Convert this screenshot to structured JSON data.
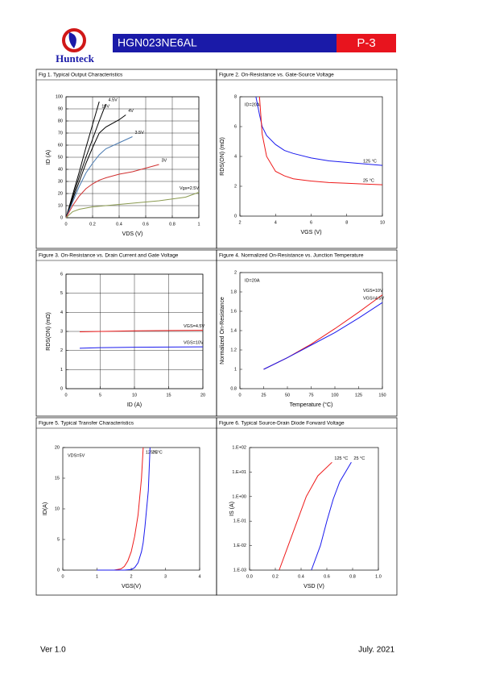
{
  "header": {
    "logo": "Hunteck",
    "title": "HGN023NE6AL",
    "page": "P-3"
  },
  "footer": {
    "version": "Ver 1.0",
    "date": "July. 2021"
  },
  "chart_data": [
    {
      "type": "line",
      "title": "Fig 1. Typical Output Characteristics",
      "xlabel": "VDS (V)",
      "ylabel": "ID (A)",
      "xlim": [
        0,
        1
      ],
      "xticks": [
        0,
        0.2,
        0.4,
        0.6,
        0.8,
        1
      ],
      "ylim": [
        0,
        100
      ],
      "yticks": [
        0,
        10,
        20,
        30,
        40,
        50,
        60,
        70,
        80,
        90,
        100
      ],
      "grid": true,
      "series": [
        {
          "name": "10V",
          "color": "#000000",
          "x": [
            0,
            0.05,
            0.1,
            0.15,
            0.2,
            0.25
          ],
          "values": [
            0,
            19,
            38,
            58,
            77,
            96
          ]
        },
        {
          "name": "4.5V",
          "color": "#000000",
          "x": [
            0,
            0.05,
            0.1,
            0.15,
            0.2,
            0.25,
            0.3
          ],
          "values": [
            0,
            17,
            34,
            50,
            65,
            80,
            94
          ]
        },
        {
          "name": "4V",
          "color": "#000000",
          "x": [
            0,
            0.05,
            0.1,
            0.15,
            0.2,
            0.25,
            0.3,
            0.4,
            0.45
          ],
          "values": [
            0,
            15,
            30,
            45,
            58,
            70,
            75,
            81,
            85
          ]
        },
        {
          "name": "3.5V",
          "color": "#4a7ab0",
          "x": [
            0,
            0.05,
            0.1,
            0.15,
            0.2,
            0.25,
            0.3,
            0.4,
            0.5
          ],
          "values": [
            0,
            13,
            26,
            37,
            45,
            52,
            57,
            62,
            67
          ]
        },
        {
          "name": "3V",
          "color": "#d03030",
          "x": [
            0,
            0.05,
            0.1,
            0.15,
            0.2,
            0.25,
            0.3,
            0.4,
            0.5,
            0.6,
            0.7
          ],
          "values": [
            0,
            10,
            18,
            24,
            28,
            31,
            33,
            36,
            38,
            41,
            44
          ]
        },
        {
          "name": "Vgs=2.5V",
          "color": "#8a9a50",
          "x": [
            0,
            0.05,
            0.1,
            0.2,
            0.3,
            0.4,
            0.5,
            0.6,
            0.7,
            0.8,
            0.9,
            1
          ],
          "values": [
            0,
            5,
            7,
            9,
            10,
            11,
            12,
            13,
            14,
            15.5,
            17,
            21
          ]
        }
      ]
    },
    {
      "type": "line",
      "title": "Figure 2. On-Resistance vs. Gate-Source Voltage",
      "xlabel": "VGS (V)",
      "ylabel": "RDS(ON) (mΩ)",
      "annotation": "ID=20A",
      "xlim": [
        2,
        10
      ],
      "xticks": [
        2,
        4,
        6,
        8,
        10
      ],
      "ylim": [
        0,
        8
      ],
      "yticks": [
        0,
        2,
        4,
        6,
        8
      ],
      "grid": false,
      "series": [
        {
          "name": "125 °C",
          "color": "#1a1aee",
          "x": [
            2.9,
            3.1,
            3.25,
            3.5,
            4,
            4.5,
            5,
            6,
            7,
            8,
            9,
            10
          ],
          "values": [
            8,
            6.8,
            6.0,
            5.4,
            4.8,
            4.4,
            4.2,
            3.9,
            3.7,
            3.6,
            3.5,
            3.4
          ]
        },
        {
          "name": "25 °C",
          "color": "#ee1a1a",
          "x": [
            3.1,
            3.25,
            3.5,
            4,
            4.5,
            5,
            6,
            7,
            8,
            9,
            10
          ],
          "values": [
            8,
            5.5,
            4.0,
            3.0,
            2.7,
            2.5,
            2.35,
            2.25,
            2.2,
            2.15,
            2.1
          ]
        }
      ]
    },
    {
      "type": "line",
      "title": "Figure 3. On-Resistance vs. Drain Current and Gate Voltage",
      "xlabel": "ID (A)",
      "ylabel": "RDS(ON) (mΩ)",
      "xlim": [
        0,
        20
      ],
      "xticks": [
        0,
        5,
        10,
        15,
        20
      ],
      "ylim": [
        0,
        6
      ],
      "yticks": [
        0,
        1,
        2,
        3,
        4,
        5,
        6
      ],
      "grid": true,
      "series": [
        {
          "name": "VGS=4.5V",
          "color": "#ee1a1a",
          "x": [
            2,
            5,
            10,
            15,
            20
          ],
          "values": [
            2.98,
            3.0,
            3.03,
            3.05,
            3.06
          ]
        },
        {
          "name": "VGS=10V",
          "color": "#1a1aee",
          "x": [
            2,
            5,
            10,
            15,
            20
          ],
          "values": [
            2.12,
            2.15,
            2.17,
            2.18,
            2.19
          ]
        }
      ]
    },
    {
      "type": "line",
      "title": "Figure 4. Normalized On-Resistance vs. Junction Temperature",
      "xlabel": "Temperature (°C)",
      "ylabel": "Normalized On-Resistance",
      "annotation": "ID=20A",
      "xlim": [
        0,
        150
      ],
      "xticks": [
        0,
        25,
        50,
        75,
        100,
        125,
        150
      ],
      "ylim": [
        0.8,
        2
      ],
      "yticks": [
        0.8,
        1,
        1.2,
        1.4,
        1.6,
        1.8,
        2
      ],
      "grid": false,
      "series": [
        {
          "name": "VGS=10V",
          "color": "#ee1a1a",
          "x": [
            25,
            50,
            75,
            100,
            125,
            150
          ],
          "values": [
            1.0,
            1.12,
            1.26,
            1.42,
            1.59,
            1.77
          ]
        },
        {
          "name": "VGS=4.5V",
          "color": "#1a1aee",
          "x": [
            25,
            50,
            75,
            100,
            125,
            150
          ],
          "values": [
            1.0,
            1.12,
            1.25,
            1.38,
            1.53,
            1.69
          ]
        }
      ]
    },
    {
      "type": "line",
      "title": "Figure 5. Typical Transfer Characteristics",
      "xlabel": "VGS(V)",
      "ylabel": "ID(A)",
      "annotation": "VDS=5V",
      "xlim": [
        0,
        4
      ],
      "xticks": [
        0,
        1,
        2,
        3,
        4
      ],
      "ylim": [
        0,
        20
      ],
      "yticks": [
        0,
        5,
        10,
        15,
        20
      ],
      "grid": false,
      "series": [
        {
          "name": "125°C",
          "color": "#ee1a1a",
          "x": [
            1,
            1.5,
            1.7,
            1.8,
            1.9,
            2.0,
            2.1,
            2.2,
            2.3,
            2.35
          ],
          "values": [
            0,
            0,
            0.2,
            0.6,
            1.5,
            3,
            5.5,
            9,
            15,
            20
          ]
        },
        {
          "name": "25°C",
          "color": "#1a1aee",
          "x": [
            1,
            1.5,
            1.8,
            2.0,
            2.1,
            2.2,
            2.3,
            2.35,
            2.4,
            2.5,
            2.55
          ],
          "values": [
            0,
            0,
            0,
            0.1,
            0.4,
            1.2,
            3,
            4.5,
            7,
            13,
            20
          ]
        }
      ]
    },
    {
      "type": "line",
      "title": "Figure 6. Typical Source-Drain Diode Forward Voltage",
      "xlabel": "VSD (V)",
      "ylabel": "IS (A)",
      "ylog": true,
      "xlim": [
        0,
        1
      ],
      "xticks": [
        {
          "value": 0,
          "label": "0.0"
        },
        0.2,
        0.4,
        0.6,
        0.8,
        {
          "value": 1,
          "label": "1.0"
        }
      ],
      "ylim": [
        0.001,
        100
      ],
      "yticks": [
        {
          "value": 0.001,
          "label": "1.E-03"
        },
        {
          "value": 0.01,
          "label": "1.E-02"
        },
        {
          "value": 0.1,
          "label": "1.E-01"
        },
        {
          "value": 1,
          "label": "1.E+00"
        },
        {
          "value": 10,
          "label": "1.E+01"
        },
        {
          "value": 100,
          "label": "1.E+02"
        }
      ],
      "grid": false,
      "series": [
        {
          "name": "125 °C",
          "color": "#ee1a1a",
          "x": [
            0.23,
            0.3,
            0.37,
            0.44,
            0.53,
            0.64
          ],
          "values": [
            0.001,
            0.01,
            0.1,
            1,
            7,
            25
          ]
        },
        {
          "name": "25 °C",
          "color": "#1a1aee",
          "x": [
            0.48,
            0.55,
            0.6,
            0.65,
            0.7,
            0.79
          ],
          "values": [
            0.001,
            0.01,
            0.1,
            0.8,
            4,
            25
          ]
        }
      ]
    }
  ]
}
